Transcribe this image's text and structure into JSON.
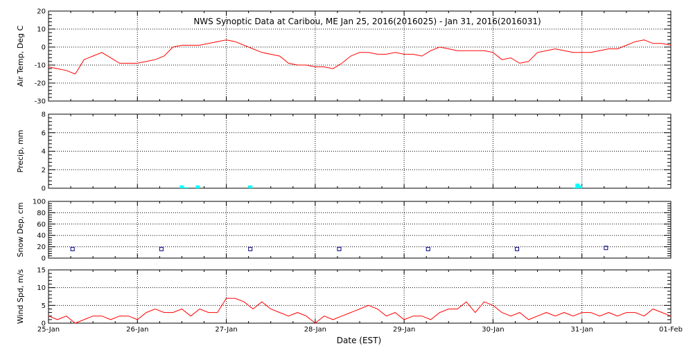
{
  "title": "NWS Synoptic Data at Caribou, ME   Jan 25, 2016(2016025) - Jan 31, 2016(2016031)",
  "xlabel": "Date (EST)",
  "x_ticks": [
    "25-Jan",
    "26-Jan",
    "27-Jan",
    "28-Jan",
    "29-Jan",
    "30-Jan",
    "31-Jan",
    "01-Feb"
  ],
  "colors": {
    "temperature_line": "#ff0000",
    "wind_line": "#ff0000",
    "precip_bars": "#00ffff",
    "snow_markers": "#000080",
    "grid": "#000000"
  },
  "chart_data": [
    {
      "type": "line",
      "name": "air_temperature",
      "ylabel": "Air Temp, Deg C",
      "ylim": [
        -30,
        20
      ],
      "yticks": [
        -30,
        -20,
        -10,
        0,
        10,
        20
      ],
      "x_range_days": [
        0,
        7
      ],
      "grid": true,
      "series": [
        {
          "x": [
            0,
            0.1,
            0.2,
            0.3,
            0.35,
            0.4,
            0.5,
            0.6,
            0.7,
            0.8,
            0.9,
            1.0,
            1.1,
            1.2,
            1.3,
            1.4,
            1.5,
            1.6,
            1.7,
            1.8,
            1.9,
            2.0,
            2.1,
            2.2,
            2.3,
            2.4,
            2.5,
            2.6,
            2.7,
            2.8,
            2.9,
            3.0,
            3.1,
            3.2,
            3.3,
            3.4,
            3.5,
            3.6,
            3.7,
            3.8,
            3.9,
            4.0,
            4.1,
            4.2,
            4.3,
            4.4,
            4.5,
            4.6,
            4.7,
            4.8,
            4.9,
            5.0,
            5.1,
            5.2,
            5.3,
            5.4,
            5.5,
            5.6,
            5.7,
            5.8,
            5.9,
            6.0,
            6.1,
            6.2,
            6.3,
            6.4,
            6.5,
            6.6,
            6.7,
            6.8,
            6.9,
            7.0
          ],
          "values": [
            -11,
            -12,
            -13,
            -15,
            -11,
            -7,
            -5,
            -3,
            -6,
            -9,
            -9,
            -9,
            -8,
            -7,
            -5,
            0,
            1,
            1,
            1,
            2,
            3,
            4,
            3,
            1,
            -1,
            -3,
            -4,
            -5,
            -9,
            -10,
            -10,
            -11,
            -11,
            -12,
            -9,
            -5,
            -3,
            -3,
            -4,
            -4,
            -3,
            -4,
            -4,
            -5,
            -2,
            0,
            -1,
            -2,
            -2,
            -2,
            -2,
            -3,
            -7,
            -6,
            -9,
            -8,
            -3,
            -2,
            -1,
            -2,
            -3,
            -3,
            -3,
            -2,
            -1,
            -1,
            1,
            3,
            4,
            2,
            2,
            1
          ]
        }
      ]
    },
    {
      "type": "bar",
      "name": "precipitation",
      "ylabel": "Precip, mm",
      "ylim": [
        0,
        8
      ],
      "yticks": [
        0,
        2,
        4,
        6,
        8
      ],
      "x_range_days": [
        0,
        7
      ],
      "grid": true,
      "series": [
        {
          "x": [
            1.5,
            1.55,
            1.68,
            2.27,
            5.92,
            5.95,
            5.98
          ],
          "values": [
            0.3,
            0.1,
            0.3,
            0.3,
            0.1,
            0.5,
            0.3
          ]
        }
      ]
    },
    {
      "type": "scatter",
      "name": "snow_depth",
      "ylabel": "Snow Dep, cm",
      "ylim": [
        0,
        100
      ],
      "yticks": [
        0,
        20,
        40,
        60,
        80,
        100
      ],
      "x_range_days": [
        0,
        7
      ],
      "grid": true,
      "series": [
        {
          "x": [
            0.27,
            1.27,
            2.27,
            3.27,
            4.27,
            5.27,
            6.27
          ],
          "values": [
            16,
            16,
            16,
            16,
            16,
            16,
            18
          ]
        }
      ]
    },
    {
      "type": "line",
      "name": "wind_speed",
      "ylabel": "Wind Spd, m/s",
      "ylim": [
        0,
        15
      ],
      "yticks": [
        0,
        5,
        10,
        15
      ],
      "x_range_days": [
        0,
        7
      ],
      "grid": true,
      "series": [
        {
          "x": [
            0,
            0.1,
            0.2,
            0.3,
            0.4,
            0.5,
            0.6,
            0.7,
            0.8,
            0.9,
            1.0,
            1.1,
            1.2,
            1.3,
            1.4,
            1.5,
            1.6,
            1.7,
            1.8,
            1.9,
            2.0,
            2.1,
            2.2,
            2.3,
            2.4,
            2.5,
            2.6,
            2.7,
            2.8,
            2.9,
            3.0,
            3.1,
            3.2,
            3.3,
            3.4,
            3.5,
            3.6,
            3.7,
            3.8,
            3.9,
            4.0,
            4.1,
            4.2,
            4.3,
            4.4,
            4.5,
            4.6,
            4.7,
            4.8,
            4.9,
            5.0,
            5.1,
            5.2,
            5.3,
            5.4,
            5.5,
            5.6,
            5.7,
            5.8,
            5.9,
            6.0,
            6.1,
            6.2,
            6.3,
            6.4,
            6.5,
            6.6,
            6.7,
            6.8,
            6.9,
            7.0
          ],
          "values": [
            2,
            1,
            2,
            0,
            1,
            2,
            2,
            1,
            2,
            2,
            1,
            3,
            4,
            3,
            3,
            4,
            2,
            4,
            3,
            3,
            7,
            7,
            6,
            4,
            6,
            4,
            3,
            2,
            3,
            2,
            0,
            2,
            1,
            2,
            3,
            4,
            5,
            4,
            2,
            3,
            1,
            2,
            2,
            1,
            3,
            4,
            4,
            6,
            3,
            6,
            5,
            3,
            2,
            3,
            1,
            2,
            3,
            2,
            3,
            2,
            3,
            3,
            2,
            3,
            2,
            3,
            3,
            2,
            4,
            3,
            2
          ]
        }
      ]
    }
  ]
}
